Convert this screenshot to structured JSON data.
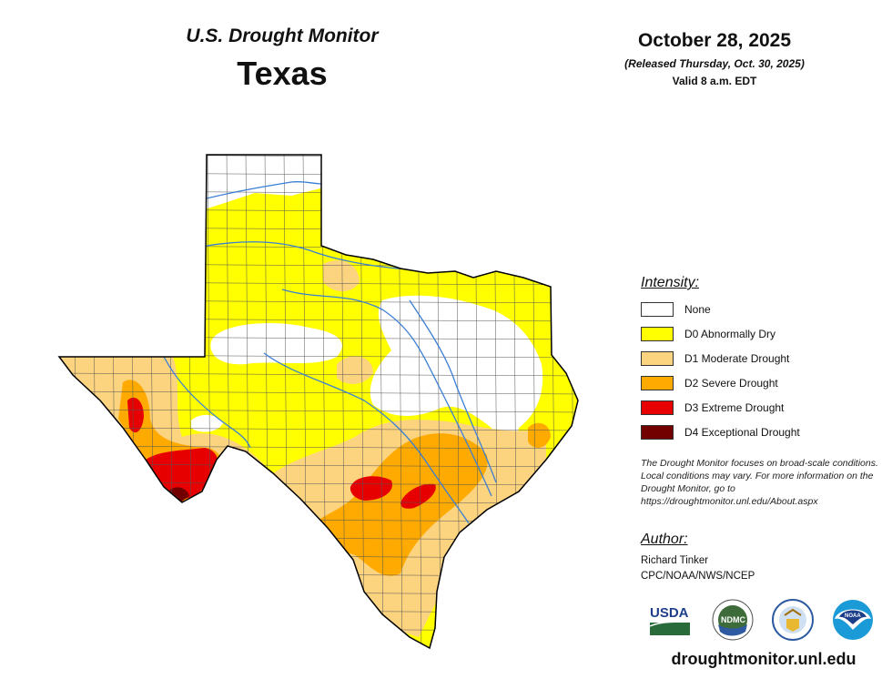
{
  "header": {
    "product": "U.S. Drought Monitor",
    "region": "Texas",
    "date": "October 28, 2025",
    "released": "(Released Thursday, Oct. 30, 2025)",
    "valid": "Valid 8 a.m. EDT"
  },
  "legend": {
    "title": "Intensity:",
    "items": [
      {
        "label": "None",
        "color": "#ffffff"
      },
      {
        "label": "D0 Abnormally Dry",
        "color": "#ffff00"
      },
      {
        "label": "D1 Moderate Drought",
        "color": "#fcd37f"
      },
      {
        "label": "D2 Severe Drought",
        "color": "#ffaa00"
      },
      {
        "label": "D3 Extreme Drought",
        "color": "#e60000"
      },
      {
        "label": "D4 Exceptional Drought",
        "color": "#730000"
      }
    ]
  },
  "note": "The Drought Monitor focuses on broad-scale conditions. Local conditions may vary. For more information on the Drought Monitor, go to https://droughtmonitor.unl.edu/About.aspx",
  "author": {
    "title": "Author:",
    "name": "Richard Tinker",
    "org": "CPC/NOAA/NWS/NCEP"
  },
  "logos": [
    "USDA",
    "NDMC",
    "DOC",
    "NOAA"
  ],
  "website": "droughtmonitor.unl.edu",
  "map_colors": {
    "river": "#3a7fd5",
    "county_lines": "#555555",
    "outline": "#000000"
  }
}
